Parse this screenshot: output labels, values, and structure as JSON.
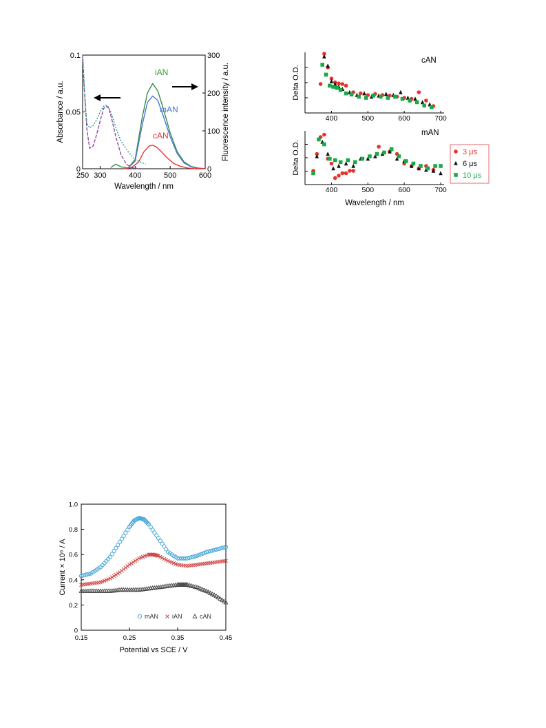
{
  "figures": [
    {
      "chart_data": {
        "type": "line",
        "xlabel": "Wavelength / nm",
        "ylabel_left": "Absorbance / a.u.",
        "ylabel_right": "Fluorescence intensity / a.u.",
        "xlim": [
          250,
          600
        ],
        "ylim_left": [
          0,
          0.1
        ],
        "ylim_right": [
          0,
          300
        ],
        "x_ticks": [
          "250",
          "300",
          "400",
          "500",
          "600"
        ],
        "y_left_ticks": [
          "0",
          "0.05",
          "0.1"
        ],
        "y_right_ticks": [
          "0",
          "100",
          "200",
          "300"
        ],
        "annotations": [
          {
            "text": "iAN",
            "color": "#2ea02e"
          },
          {
            "text": "mAN",
            "color": "#4a78dc"
          },
          {
            "text": "cAN",
            "color": "#e8312a"
          }
        ],
        "arrows": [
          "left",
          "right"
        ],
        "series": [
          {
            "name": "iAN",
            "axis": "right",
            "color": "#3a8a4a",
            "dash": "solid",
            "x": [
              330,
              345,
              360,
              380,
              400,
              420,
              435,
              450,
              465,
              480,
              500,
              520,
              540,
              560,
              580,
              600
            ],
            "y": [
              3,
              12,
              5,
              2,
              25,
              135,
              200,
              225,
              205,
              160,
              95,
              45,
              18,
              6,
              2,
              0
            ]
          },
          {
            "name": "mAN",
            "axis": "right",
            "color": "#4a78dc",
            "dash": "solid",
            "x": [
              380,
              400,
              420,
              435,
              450,
              465,
              480,
              500,
              520,
              540,
              560,
              580,
              600
            ],
            "y": [
              2,
              20,
              115,
              175,
              192,
              180,
              140,
              85,
              40,
              15,
              5,
              1,
              0
            ]
          },
          {
            "name": "cAN",
            "axis": "right",
            "color": "#e8312a",
            "dash": "solid",
            "x": [
              370,
              390,
              410,
              425,
              440,
              450,
              460,
              475,
              490,
              510,
              530,
              550,
              570,
              600
            ],
            "y": [
              0,
              3,
              18,
              45,
              60,
              62,
              58,
              45,
              30,
              14,
              6,
              2,
              0,
              0
            ]
          },
          {
            "name": "",
            "axis": "left",
            "color": "#8a4aa8",
            "dash": "dashed",
            "x": [
              250,
              255,
              262,
              270,
              280,
              290,
              300,
              310,
              318,
              325,
              333,
              345,
              360,
              375,
              390,
              410
            ],
            "y": [
              0.1,
              0.07,
              0.035,
              0.018,
              0.02,
              0.03,
              0.042,
              0.053,
              0.055,
              0.053,
              0.044,
              0.028,
              0.012,
              0.004,
              0.001,
              0
            ]
          },
          {
            "name": "",
            "axis": "left",
            "color": "#2a9a8a",
            "dash": "dotted",
            "x": [
              250,
              255,
              262,
              270,
              280,
              290,
              300,
              310,
              318,
              325,
              333,
              345,
              360,
              380,
              400,
              430
            ],
            "y": [
              0.1,
              0.07,
              0.04,
              0.036,
              0.038,
              0.043,
              0.05,
              0.055,
              0.056,
              0.054,
              0.048,
              0.036,
              0.024,
              0.015,
              0.008,
              0.004
            ]
          }
        ]
      }
    },
    {
      "chart_data": [
        {
          "type": "scatter",
          "panel_label": "cAN",
          "ylabel": "Delta O.D.",
          "xlim": [
            350,
            700
          ],
          "x_ticks": [
            "400",
            "500",
            "600",
            "700"
          ],
          "series": [
            {
              "name": "3 μs",
              "marker": "circle",
              "color": "#e8312a",
              "x": [
                370,
                380,
                390,
                400,
                410,
                420,
                430,
                440,
                460,
                480,
                500,
                520,
                540,
                560,
                580,
                600,
                620,
                640,
                660,
                680
              ],
              "y": [
                0.45,
                1.0,
                0.75,
                0.55,
                0.48,
                0.46,
                0.45,
                0.42,
                0.3,
                0.28,
                0.25,
                0.27,
                0.25,
                0.24,
                0.22,
                0.2,
                0.18,
                0.3,
                0.15,
                0.05
              ]
            },
            {
              "name": "6 μs",
              "marker": "triangle",
              "color": "#111111",
              "x": [
                380,
                390,
                400,
                410,
                420,
                430,
                450,
                470,
                490,
                510,
                530,
                550,
                570,
                590,
                610,
                630,
                650,
                670
              ],
              "y": [
                0.95,
                0.78,
                0.5,
                0.45,
                0.4,
                0.36,
                0.3,
                0.25,
                0.28,
                0.22,
                0.24,
                0.27,
                0.25,
                0.3,
                0.2,
                0.18,
                0.12,
                0.08
              ]
            },
            {
              "name": "10 μs",
              "marker": "square",
              "color": "#1aa84a",
              "x": [
                375,
                385,
                395,
                405,
                415,
                425,
                440,
                455,
                475,
                495,
                515,
                535,
                555,
                575,
                595,
                615,
                635,
                655,
                675
              ],
              "y": [
                0.8,
                0.62,
                0.42,
                0.4,
                0.38,
                0.34,
                0.28,
                0.26,
                0.22,
                0.2,
                0.24,
                0.22,
                0.2,
                0.22,
                0.18,
                0.15,
                0.12,
                0.06,
                0.03
              ]
            }
          ]
        },
        {
          "type": "scatter",
          "panel_label": "mAN",
          "ylabel": "Delta O.D.",
          "xlabel": "Wavelength / nm",
          "xlim": [
            350,
            700
          ],
          "x_ticks": [
            "400",
            "500",
            "600",
            "700"
          ],
          "series": [
            {
              "name": "3 μs",
              "marker": "circle",
              "color": "#e8312a",
              "x": [
                350,
                360,
                370,
                380,
                390,
                400,
                410,
                420,
                430,
                440,
                450,
                460,
                530,
                560,
                580,
                600,
                620,
                640,
                660,
                680
              ],
              "y": [
                0.2,
                0.55,
                0.9,
                0.95,
                0.45,
                0.35,
                0.05,
                0.1,
                0.15,
                0.15,
                0.2,
                0.2,
                0.7,
                0.6,
                0.55,
                0.35,
                0.3,
                0.25,
                0.3,
                0.22
              ]
            },
            {
              "name": "6 μs",
              "marker": "triangle",
              "color": "#111111",
              "x": [
                360,
                375,
                390,
                405,
                420,
                440,
                460,
                480,
                500,
                520,
                540,
                560,
                580,
                600,
                620,
                640,
                660,
                680,
                700
              ],
              "y": [
                0.5,
                0.8,
                0.55,
                0.25,
                0.3,
                0.35,
                0.3,
                0.45,
                0.45,
                0.5,
                0.55,
                0.6,
                0.45,
                0.4,
                0.3,
                0.25,
                0.22,
                0.2,
                0.15
              ]
            },
            {
              "name": "10 μs",
              "marker": "square",
              "color": "#1aa84a",
              "x": [
                350,
                365,
                380,
                395,
                410,
                425,
                445,
                465,
                485,
                505,
                525,
                545,
                565,
                585,
                605,
                625,
                645,
                665,
                685,
                700
              ],
              "y": [
                0.15,
                0.85,
                0.75,
                0.45,
                0.42,
                0.38,
                0.42,
                0.38,
                0.45,
                0.5,
                0.55,
                0.58,
                0.65,
                0.5,
                0.4,
                0.35,
                0.3,
                0.25,
                0.3,
                0.3
              ]
            }
          ]
        }
      ]
    },
    {
      "chart_data": {
        "type": "scatter",
        "xlabel": "Potential vs SCE / V",
        "ylabel": "Current × 10⁶ / A",
        "xlim": [
          0.15,
          0.45
        ],
        "ylim": [
          0,
          1.0
        ],
        "x_ticks": [
          "0.15",
          "0.25",
          "0.35",
          "0.45"
        ],
        "y_ticks": [
          "0",
          "0.2",
          "0.4",
          "0.6",
          "0.8",
          "1.0"
        ],
        "legend": "bottom-center",
        "series": [
          {
            "name": "mAN",
            "marker": "circle-open",
            "color": "#4aa8d8",
            "x": [
              0.15,
              0.17,
              0.19,
              0.21,
              0.23,
              0.25,
              0.26,
              0.27,
              0.28,
              0.29,
              0.31,
              0.33,
              0.35,
              0.37,
              0.39,
              0.41,
              0.43,
              0.45
            ],
            "y": [
              0.43,
              0.45,
              0.5,
              0.58,
              0.7,
              0.82,
              0.87,
              0.89,
              0.88,
              0.84,
              0.73,
              0.62,
              0.57,
              0.57,
              0.59,
              0.62,
              0.64,
              0.66
            ]
          },
          {
            "name": "iAN",
            "marker": "x",
            "color": "#d04848",
            "x": [
              0.15,
              0.17,
              0.19,
              0.21,
              0.23,
              0.25,
              0.27,
              0.29,
              0.3,
              0.31,
              0.33,
              0.35,
              0.37,
              0.39,
              0.41,
              0.43,
              0.45
            ],
            "y": [
              0.36,
              0.37,
              0.38,
              0.41,
              0.46,
              0.52,
              0.57,
              0.6,
              0.6,
              0.59,
              0.55,
              0.52,
              0.51,
              0.52,
              0.53,
              0.54,
              0.55
            ]
          },
          {
            "name": "cAN",
            "marker": "triangle-open",
            "color": "#444444",
            "x": [
              0.15,
              0.17,
              0.19,
              0.21,
              0.23,
              0.25,
              0.27,
              0.29,
              0.31,
              0.33,
              0.35,
              0.36,
              0.37,
              0.39,
              0.41,
              0.43,
              0.45
            ],
            "y": [
              0.31,
              0.31,
              0.31,
              0.31,
              0.32,
              0.32,
              0.32,
              0.33,
              0.34,
              0.35,
              0.36,
              0.36,
              0.36,
              0.34,
              0.31,
              0.27,
              0.22
            ]
          }
        ]
      }
    }
  ]
}
